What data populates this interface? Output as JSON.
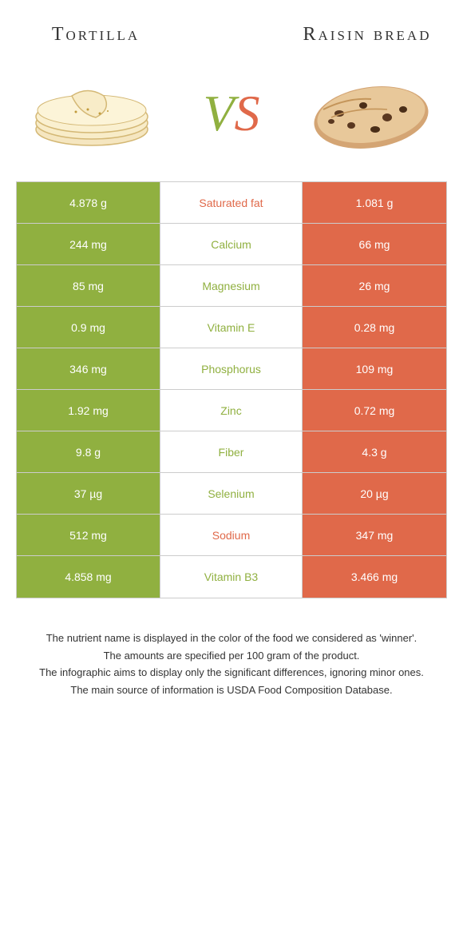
{
  "header": {
    "left_title": "Tortilla",
    "right_title": "Raisin bread"
  },
  "vs": {
    "v": "V",
    "s": "S"
  },
  "colors": {
    "green": "#90b040",
    "orange": "#e0694a",
    "border": "#cccccc",
    "text": "#333333",
    "bg": "#ffffff"
  },
  "rows": [
    {
      "left": "4.878 g",
      "name": "Saturated fat",
      "right": "1.081 g",
      "winner": "orange"
    },
    {
      "left": "244 mg",
      "name": "Calcium",
      "right": "66 mg",
      "winner": "green"
    },
    {
      "left": "85 mg",
      "name": "Magnesium",
      "right": "26 mg",
      "winner": "green"
    },
    {
      "left": "0.9 mg",
      "name": "Vitamin E",
      "right": "0.28 mg",
      "winner": "green"
    },
    {
      "left": "346 mg",
      "name": "Phosphorus",
      "right": "109 mg",
      "winner": "green"
    },
    {
      "left": "1.92 mg",
      "name": "Zinc",
      "right": "0.72 mg",
      "winner": "green"
    },
    {
      "left": "9.8 g",
      "name": "Fiber",
      "right": "4.3 g",
      "winner": "green"
    },
    {
      "left": "37 µg",
      "name": "Selenium",
      "right": "20 µg",
      "winner": "green"
    },
    {
      "left": "512 mg",
      "name": "Sodium",
      "right": "347 mg",
      "winner": "orange"
    },
    {
      "left": "4.858 mg",
      "name": "Vitamin B3",
      "right": "3.466 mg",
      "winner": "green"
    }
  ],
  "footer": {
    "line1": "The nutrient name is displayed in the color of the food we considered as 'winner'.",
    "line2": "The amounts are specified per 100 gram of the product.",
    "line3": "The infographic aims to display only the significant differences, ignoring minor ones.",
    "line4": "The main source of information is USDA Food Composition Database."
  }
}
